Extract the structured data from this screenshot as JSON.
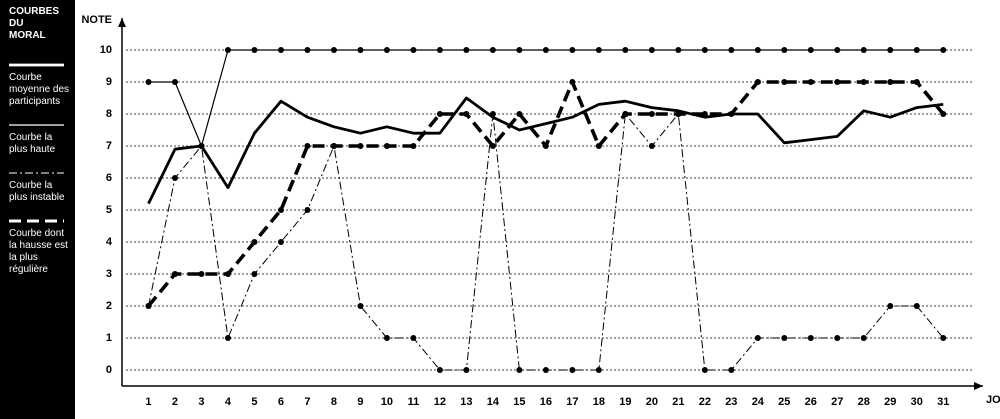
{
  "chart_data": {
    "type": "line",
    "title": "COURBES DU MORAL",
    "y_label": "NOTE",
    "x_label": "JOURS",
    "x": [
      1,
      2,
      3,
      4,
      5,
      6,
      7,
      8,
      9,
      10,
      11,
      12,
      13,
      14,
      15,
      16,
      17,
      18,
      19,
      20,
      21,
      22,
      23,
      24,
      25,
      26,
      27,
      28,
      29,
      30,
      31
    ],
    "xlim": [
      0,
      32.5
    ],
    "ylim": [
      -0.5,
      11
    ],
    "yticks": [
      0,
      1,
      2,
      3,
      4,
      5,
      6,
      7,
      8,
      9,
      10
    ],
    "grid": true,
    "series": [
      {
        "name": "Courbe moyenne des participants",
        "color": "#000000",
        "style": "thick",
        "markers": false,
        "values": [
          5.2,
          6.9,
          7.0,
          5.7,
          7.4,
          8.4,
          7.9,
          7.6,
          7.4,
          7.6,
          7.4,
          7.4,
          8.5,
          7.9,
          7.5,
          7.7,
          7.9,
          8.3,
          8.4,
          8.2,
          8.1,
          7.9,
          8.0,
          8.0,
          7.1,
          7.2,
          7.3,
          8.1,
          7.9,
          8.2,
          8.3
        ]
      },
      {
        "name": "Courbe la plus haute",
        "color": "#000000",
        "style": "thin",
        "markers": true,
        "values": [
          9,
          9,
          7,
          10,
          10,
          10,
          10,
          10,
          10,
          10,
          10,
          10,
          10,
          10,
          10,
          10,
          10,
          10,
          10,
          10,
          10,
          10,
          10,
          10,
          10,
          10,
          10,
          10,
          10,
          10,
          10
        ]
      },
      {
        "name": "Courbe la plus instable",
        "color": "#000000",
        "style": "dash-dot",
        "markers": true,
        "values": [
          2,
          6,
          7,
          1,
          3,
          4,
          5,
          7,
          2,
          1,
          1,
          0,
          0,
          8,
          0,
          0,
          0,
          0,
          8,
          7,
          8,
          0,
          0,
          1,
          1,
          1,
          1,
          1,
          2,
          2,
          1
        ]
      },
      {
        "name": "Courbe dont la hausse est la plus régulière",
        "color": "#000000",
        "style": "dashed",
        "markers": true,
        "values": [
          2,
          3,
          3,
          3,
          4,
          5,
          7,
          7,
          7,
          7,
          7,
          8,
          8,
          7,
          8,
          7,
          9,
          7,
          8,
          8,
          8,
          8,
          8,
          9,
          9,
          9,
          9,
          9,
          9,
          9,
          8
        ]
      }
    ]
  }
}
